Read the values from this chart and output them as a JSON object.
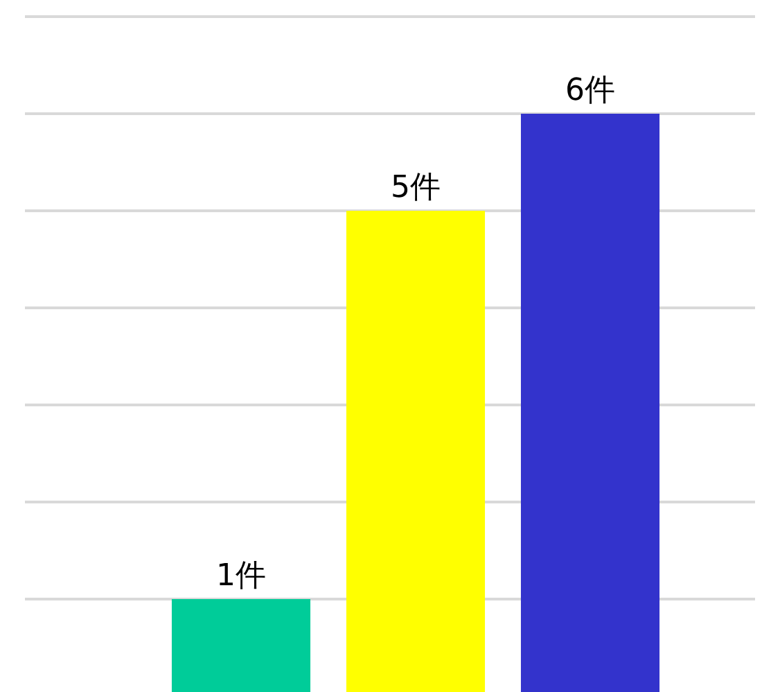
{
  "chart_data": {
    "type": "bar",
    "categories": [
      null,
      null,
      null
    ],
    "values": [
      1,
      5,
      6
    ],
    "colors": [
      "#00cc99",
      "#ffff00",
      "#3333cc"
    ],
    "value_labels": [
      "1件",
      "5件",
      "6件"
    ],
    "ylim": [
      0,
      7.2
    ],
    "yticks": [
      {
        "value": 1,
        "label": null
      },
      {
        "value": 2,
        "label": null
      },
      {
        "value": 3,
        "label": null
      },
      {
        "value": 4,
        "label": null
      },
      {
        "value": 5,
        "label": null
      },
      {
        "value": 6,
        "label": null
      },
      {
        "value": 7,
        "label": null
      }
    ],
    "grid": "y"
  }
}
